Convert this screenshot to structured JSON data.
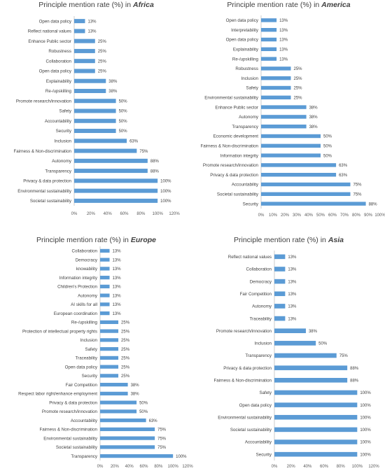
{
  "chart_data": [
    {
      "type": "bar",
      "orientation": "horizontal",
      "title_prefix": "Principle mention rate (%) in ",
      "region": "Africa",
      "categories": [
        "Open data policy",
        "Reflect national values",
        "Enhance Public sector",
        "Robustness",
        "Collaboration",
        "Open data policy",
        "Explainability",
        "Re-/upskilling",
        "Promote research/innovation",
        "Safety",
        "Accountability",
        "Security",
        "Inclusion",
        "Fairness & Non-discrimination",
        "Autonomy",
        "Transparency",
        "Privacy & data protection",
        "Environmental sustainability",
        "Societal sustainability"
      ],
      "values": [
        13,
        13,
        25,
        25,
        25,
        25,
        38,
        38,
        50,
        50,
        50,
        50,
        63,
        75,
        88,
        88,
        100,
        100,
        100
      ],
      "xlim": [
        0,
        120
      ],
      "xticks": [
        0,
        20,
        40,
        60,
        80,
        100,
        120
      ],
      "tick_suffix": "%",
      "grid": false,
      "bar_color": "#5b9bd5"
    },
    {
      "type": "bar",
      "orientation": "horizontal",
      "title_prefix": "Principle mention rate (%) in ",
      "region": "America",
      "categories": [
        "Open data policy",
        "Interpretability",
        "Open data policy",
        "Explainability",
        "Re-/upskilling",
        "Robustness",
        "Inclusion",
        "Safety",
        "Environmental sustainability",
        "Enhance Public sector",
        "Autonomy",
        "Transparency",
        "Economic development",
        "Fairness & Non-discrimination",
        "Information integrity",
        "Promote research/innovation",
        "Privacy & data protection",
        "Accountability",
        "Societal sustainability",
        "Security"
      ],
      "values": [
        13,
        13,
        13,
        13,
        13,
        25,
        25,
        25,
        25,
        38,
        38,
        38,
        50,
        50,
        50,
        63,
        63,
        75,
        75,
        88
      ],
      "xlim": [
        0,
        100
      ],
      "xticks": [
        0,
        10,
        20,
        30,
        40,
        50,
        60,
        70,
        80,
        90,
        100
      ],
      "tick_suffix": "%",
      "grid": false,
      "bar_color": "#5b9bd5"
    },
    {
      "type": "bar",
      "orientation": "horizontal",
      "title_prefix": "Principle mention rate (%) in ",
      "region": "Europe",
      "categories": [
        "Collaboration",
        "Democracy",
        "knowability",
        "Information integrity",
        "Children's Protection",
        "Autonomy",
        "AI skills for all",
        "European coordination",
        "Re-/upskilling",
        "Protection of intellectual property rights",
        "Inclusion",
        "Safety",
        "Traceability",
        "Open data policy",
        "Security",
        "Fair Competition",
        "Respect labor right/enhance employment",
        "Privacy & data protection",
        "Promote research/innovation",
        "Accountability",
        "Fairness & Non-discrimination",
        "Environmental sustainability",
        "Societal sustainability",
        "Transparency"
      ],
      "values": [
        13,
        13,
        13,
        13,
        13,
        13,
        13,
        13,
        25,
        25,
        25,
        25,
        25,
        25,
        25,
        38,
        38,
        50,
        50,
        63,
        75,
        75,
        75,
        100
      ],
      "xlim": [
        0,
        120
      ],
      "xticks": [
        0,
        20,
        40,
        60,
        80,
        100,
        120
      ],
      "tick_suffix": "%",
      "grid": false,
      "bar_color": "#5b9bd5"
    },
    {
      "type": "bar",
      "orientation": "horizontal",
      "title_prefix": "Principle mention rate (%) in ",
      "region": "Asia",
      "categories": [
        "Reflect national values",
        "Collaboration",
        "Democracy",
        "Fair Competition",
        "Autonomy",
        "Traceability",
        "Promote research/innovation",
        "Inclusion",
        "Transparency",
        "Privacy & data protection",
        "Fairness & Non-discrimination",
        "Safety",
        "Open data policy",
        "Environmental sustainability",
        "Societal sustainability",
        "Accountability",
        "Security"
      ],
      "values": [
        13,
        13,
        13,
        13,
        13,
        13,
        38,
        50,
        75,
        88,
        88,
        100,
        100,
        100,
        100,
        100,
        100
      ],
      "xlim": [
        0,
        120
      ],
      "xticks": [
        0,
        20,
        40,
        60,
        80,
        100,
        120
      ],
      "tick_suffix": "%",
      "grid": false,
      "bar_color": "#5b9bd5"
    }
  ]
}
